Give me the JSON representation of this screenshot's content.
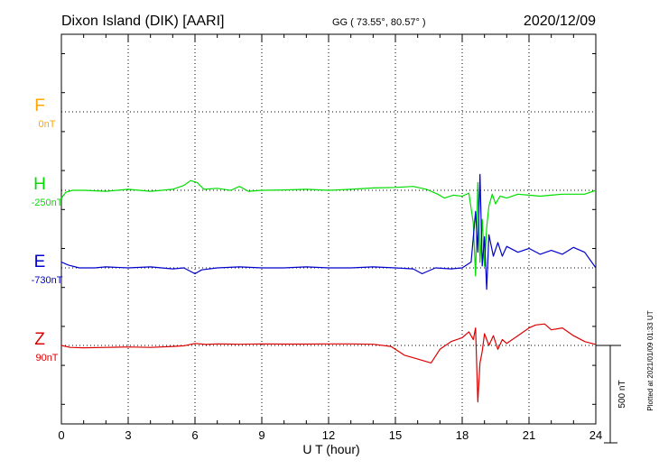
{
  "header": {
    "station": "Dixon Island (DIK)  [AARI]",
    "coords": "GG ( 73.55°,  80.57° )",
    "date": "2020/12/09"
  },
  "footer": {
    "plotted": "Plotted at 2021/01/09 01:33 UT"
  },
  "colors": {
    "F": "#ffa500",
    "H": "#00dd00",
    "E": "#0000cc",
    "Z": "#dd0000",
    "axis": "#000000",
    "grid": "#000000"
  },
  "chart_data": {
    "type": "line",
    "xlabel": "U T (hour)",
    "xlim": [
      0,
      24
    ],
    "xticks": [
      0,
      3,
      6,
      9,
      12,
      15,
      18,
      21,
      24
    ],
    "xtick_labels": [
      "0",
      "3",
      "6",
      "9",
      "12",
      "15",
      "18",
      "21",
      "24"
    ],
    "ylim_nT": [
      -1500,
      500
    ],
    "grid": true,
    "scale_bar": {
      "value_nT": 500,
      "label": "500 nT"
    },
    "series": [
      {
        "name": "F",
        "key": "F",
        "baseline_label": "0nT",
        "baseline_nT": 0,
        "x": [],
        "y": []
      },
      {
        "name": "H",
        "key": "H",
        "baseline_label": "-250nT",
        "baseline_nT": -250,
        "x": [
          0,
          0.2,
          0.5,
          1,
          2,
          3,
          4,
          5,
          5.5,
          5.8,
          6.1,
          6.4,
          7,
          7.6,
          8,
          8.4,
          9,
          10,
          11,
          12,
          13,
          14,
          15,
          15.8,
          16.4,
          16.9,
          17.2,
          17.6,
          18,
          18.3,
          18.5,
          18.6,
          18.7,
          18.8,
          18.9,
          19.0,
          19.1,
          19.2,
          19.35,
          19.5,
          19.7,
          20,
          20.5,
          21,
          21.5,
          22,
          22.5,
          23,
          23.5,
          24
        ],
        "y": [
          -290,
          -260,
          -250,
          -250,
          -255,
          -245,
          -255,
          -245,
          -225,
          -200,
          -210,
          -245,
          -240,
          -250,
          -230,
          -255,
          -250,
          -248,
          -245,
          -250,
          -245,
          -238,
          -235,
          -230,
          -245,
          -270,
          -290,
          -275,
          -280,
          -265,
          -420,
          -690,
          -210,
          -620,
          -400,
          -640,
          -440,
          -330,
          -270,
          -320,
          -280,
          -290,
          -270,
          -275,
          -280,
          -275,
          -270,
          -270,
          -270,
          -250
        ]
      },
      {
        "name": "E",
        "key": "E",
        "baseline_label": "-730nT",
        "baseline_nT": -730,
        "x": [
          0,
          0.3,
          0.8,
          1.5,
          2,
          3,
          4,
          5,
          5.5,
          6,
          6.3,
          7,
          8,
          9,
          10,
          11,
          12,
          13,
          14,
          15,
          15.8,
          16.2,
          16.8,
          17.5,
          18,
          18.4,
          18.6,
          18.7,
          18.8,
          18.9,
          19.0,
          19.1,
          19.2,
          19.4,
          19.6,
          19.8,
          20,
          20.5,
          21,
          21.5,
          22,
          22.5,
          23,
          23.5,
          24
        ],
        "y": [
          -700,
          -715,
          -730,
          -730,
          -725,
          -730,
          -725,
          -735,
          -730,
          -760,
          -740,
          -730,
          -725,
          -730,
          -730,
          -725,
          -730,
          -730,
          -725,
          -730,
          -735,
          -760,
          -730,
          -735,
          -730,
          -700,
          -440,
          -650,
          -250,
          -720,
          -570,
          -840,
          -560,
          -670,
          -600,
          -670,
          -620,
          -650,
          -630,
          -660,
          -640,
          -660,
          -625,
          -650,
          -730
        ]
      },
      {
        "name": "Z",
        "key": "Z",
        "baseline_label": "90nT",
        "baseline_nT": 90,
        "x": [
          0,
          0.4,
          1,
          2,
          3,
          4,
          5,
          5.5,
          6,
          6.5,
          7,
          8,
          9,
          10,
          11,
          12,
          13,
          14,
          14.8,
          15.4,
          16,
          16.6,
          17,
          17.5,
          18,
          18.3,
          18.5,
          18.6,
          18.7,
          18.8,
          18.9,
          19.0,
          19.2,
          19.4,
          19.6,
          19.8,
          20,
          20.5,
          21,
          21.3,
          21.7,
          22,
          22.5,
          23,
          23.5,
          24
        ],
        "y": [
          90,
          80,
          78,
          80,
          82,
          80,
          85,
          88,
          100,
          95,
          98,
          96,
          98,
          97,
          97,
          98,
          98,
          96,
          85,
          40,
          20,
          0,
          70,
          110,
          130,
          160,
          120,
          180,
          -200,
          0,
          60,
          150,
          90,
          140,
          70,
          120,
          100,
          140,
          180,
          195,
          200,
          170,
          180,
          140,
          110,
          95
        ]
      }
    ]
  }
}
